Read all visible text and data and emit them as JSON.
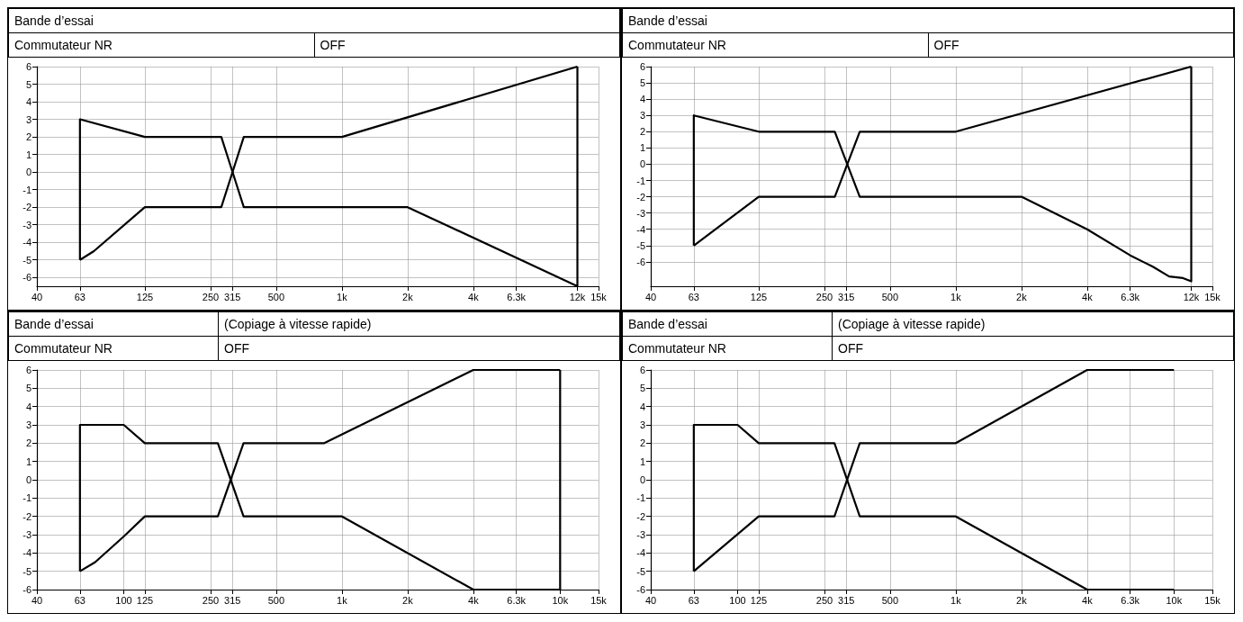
{
  "chart_data": [
    {
      "type": "line",
      "title": "Bande d’essai",
      "annotations": [
        "Commutateur NR",
        "OFF"
      ],
      "series": [
        {
          "color": "#000000",
          "x": [
            63,
            63,
            125,
            280,
            355,
            2000,
            12000,
            12000
          ],
          "values": [
            -5,
            3,
            2,
            2,
            -2,
            -2,
            -6.5,
            6
          ]
        },
        {
          "color": "#000000",
          "x": [
            63,
            73,
            125,
            280,
            355,
            1000,
            12000
          ],
          "values": [
            -5,
            -4.5,
            -2,
            -2,
            2,
            2,
            6
          ]
        }
      ],
      "xlim": [
        40,
        15000
      ],
      "xticks": [
        40,
        63,
        125,
        250,
        315,
        500,
        {
          "value": 1000,
          "label": "1k"
        },
        {
          "value": 2000,
          "label": "2k"
        },
        {
          "value": 4000,
          "label": "4k"
        },
        {
          "value": 6300,
          "label": "6.3k"
        },
        {
          "value": 12000,
          "label": "12k"
        },
        {
          "value": 15000,
          "label": "15k"
        }
      ],
      "ylim": [
        -6.5,
        6
      ],
      "yticks": [
        -6,
        -5,
        -4,
        -3,
        -2,
        -1,
        0,
        1,
        2,
        3,
        4,
        5,
        6
      ],
      "log": "x",
      "grid": true
    },
    {
      "type": "line",
      "title": "Bande d’essai",
      "annotations": [
        "Commutateur NR",
        "OFF"
      ],
      "series": [
        {
          "color": "#000000",
          "x": [
            63,
            63,
            125,
            279,
            363,
            2000,
            4000,
            6300,
            8000,
            9500,
            11000,
            12000,
            12000
          ],
          "values": [
            -5,
            3,
            2,
            2,
            -2,
            -2,
            -4,
            -5.6,
            -6.3,
            -6.9,
            -7,
            -7.2,
            6
          ]
        },
        {
          "color": "#000000",
          "x": [
            63,
            125,
            279,
            363,
            1000,
            12000
          ],
          "values": [
            -5,
            -2,
            -2,
            2,
            2,
            6
          ]
        }
      ],
      "xlim": [
        40,
        15000
      ],
      "xticks": [
        40,
        63,
        125,
        250,
        315,
        500,
        {
          "value": 1000,
          "label": "1k"
        },
        {
          "value": 2000,
          "label": "2k"
        },
        {
          "value": 4000,
          "label": "4k"
        },
        {
          "value": 6300,
          "label": "6.3k"
        },
        {
          "value": 12000,
          "label": "12k"
        },
        {
          "value": 15000,
          "label": "15k"
        }
      ],
      "ylim": [
        -7.5,
        6
      ],
      "yticks": [
        -6,
        -5,
        -4,
        -3,
        -2,
        -1,
        0,
        1,
        2,
        3,
        4,
        5,
        6
      ],
      "log": "x",
      "grid": true
    },
    {
      "type": "line",
      "title": "Bande d’essai",
      "subtitle": "(Copiage à vitesse rapide)",
      "annotations": [
        "Commutateur NR",
        "OFF"
      ],
      "series": [
        {
          "color": "#000000",
          "x": [
            63,
            63,
            100,
            125,
            270,
            354,
            1000,
            4000,
            10000,
            10000
          ],
          "values": [
            -5,
            3,
            3,
            2,
            2,
            -2,
            -2,
            -6,
            -6,
            6
          ]
        },
        {
          "color": "#000000",
          "x": [
            63,
            74,
            100,
            125,
            270,
            354,
            830,
            4000,
            10000
          ],
          "values": [
            -5,
            -4.5,
            -3.1,
            -2,
            -2,
            2,
            2,
            6,
            6
          ]
        }
      ],
      "xlim": [
        40,
        15000
      ],
      "xticks": [
        40,
        63,
        100,
        125,
        250,
        315,
        500,
        {
          "value": 1000,
          "label": "1k"
        },
        {
          "value": 2000,
          "label": "2k"
        },
        {
          "value": 4000,
          "label": "4k"
        },
        {
          "value": 6300,
          "label": "6.3k"
        },
        {
          "value": 10000,
          "label": "10k"
        },
        {
          "value": 15000,
          "label": "15k"
        }
      ],
      "ylim": [
        -6,
        6
      ],
      "yticks": [
        -6,
        -5,
        -4,
        -3,
        -2,
        -1,
        0,
        1,
        2,
        3,
        4,
        5,
        6
      ],
      "log": "x",
      "grid": true
    },
    {
      "type": "line",
      "title": "Bande d’essai",
      "subtitle": "(Copiage à vitesse rapide)",
      "annotations": [
        "Commutateur NR",
        "OFF"
      ],
      "series": [
        {
          "color": "#000000",
          "x": [
            63,
            63,
            100,
            125,
            278,
            363,
            1000,
            4000,
            10000
          ],
          "values": [
            -5,
            3,
            3,
            2,
            2,
            -2,
            -2,
            -6,
            -6
          ]
        },
        {
          "color": "#000000",
          "x": [
            63,
            125,
            278,
            363,
            1000,
            4000,
            10000
          ],
          "values": [
            -5,
            -2,
            -2,
            2,
            2,
            6,
            6
          ]
        }
      ],
      "xlim": [
        40,
        15000
      ],
      "xticks": [
        40,
        63,
        100,
        125,
        250,
        315,
        500,
        {
          "value": 1000,
          "label": "1k"
        },
        {
          "value": 2000,
          "label": "2k"
        },
        {
          "value": 4000,
          "label": "4k"
        },
        {
          "value": 6300,
          "label": "6.3k"
        },
        {
          "value": 10000,
          "label": "10k"
        },
        {
          "value": 15000,
          "label": "15k"
        }
      ],
      "ylim": [
        -6,
        6
      ],
      "yticks": [
        -6,
        -5,
        -4,
        -3,
        -2,
        -1,
        0,
        1,
        2,
        3,
        4,
        5,
        6
      ],
      "log": "x",
      "grid": true
    }
  ]
}
